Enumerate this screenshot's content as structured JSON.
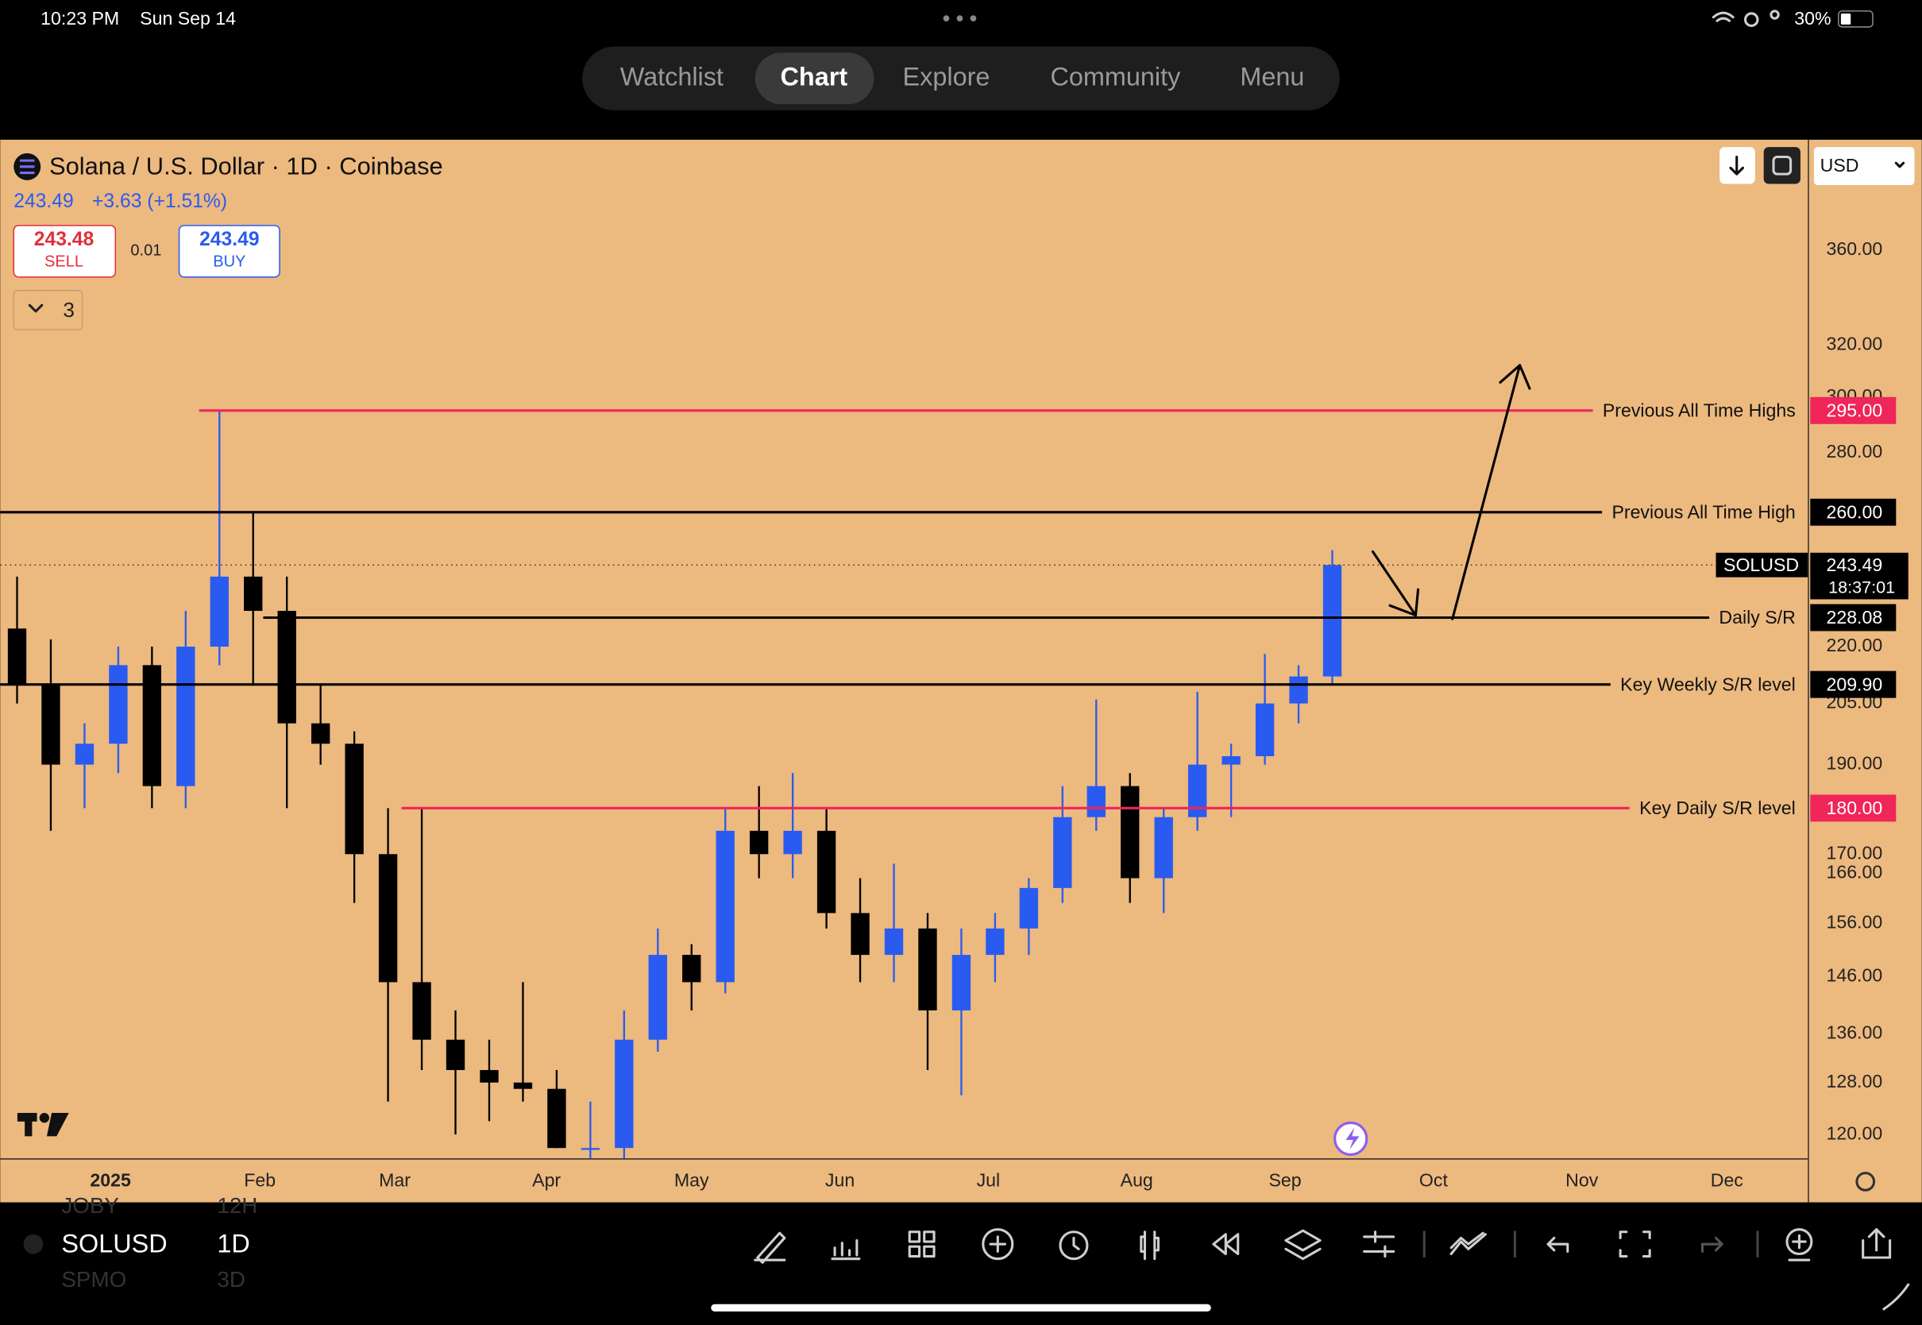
{
  "status_bar": {
    "time": "10:23 PM",
    "date": "Sun Sep 14",
    "battery": "30%"
  },
  "tabs": [
    "Watchlist",
    "Chart",
    "Explore",
    "Community",
    "Menu"
  ],
  "header": {
    "title": "Solana / U.S. Dollar · 1D · Coinbase",
    "price": "243.49",
    "change": "+3.63 (+1.51%)",
    "sell_price": "243.48",
    "sell": "SELL",
    "spread": "0.01",
    "buy_price": "243.49",
    "buy": "BUY",
    "indicators": "3",
    "currency": "USD"
  },
  "chart_data": {
    "type": "candlestick",
    "log_scale": true,
    "grid": false,
    "up_color": "#2a5bf0",
    "down_color": "#000000",
    "categories": [
      null,
      null,
      null,
      null,
      null,
      null,
      null,
      null,
      null,
      null,
      null,
      null,
      null,
      null,
      null,
      null,
      null,
      null,
      null,
      null,
      null,
      null,
      null,
      null,
      null,
      null,
      null,
      null,
      null,
      null,
      null,
      null,
      null,
      null,
      null,
      null,
      null,
      null,
      null,
      null
    ],
    "open": [
      225,
      210,
      190,
      195,
      215,
      185,
      220,
      240,
      230,
      200,
      195,
      170,
      145,
      135,
      130,
      128,
      127,
      118,
      118,
      135,
      150,
      145,
      175,
      170,
      175,
      158,
      150,
      155,
      140,
      150,
      155,
      163,
      178,
      185,
      165,
      178,
      190,
      192,
      205,
      212
    ],
    "high": [
      240,
      222,
      200,
      220,
      220,
      230,
      295,
      260,
      240,
      210,
      198,
      180,
      180,
      140,
      135,
      145,
      130,
      125,
      140,
      155,
      152,
      180,
      185,
      188,
      180,
      165,
      168,
      158,
      155,
      158,
      165,
      185,
      206,
      188,
      180,
      208,
      195,
      218,
      215,
      248
    ],
    "low": [
      205,
      175,
      180,
      188,
      180,
      180,
      215,
      210,
      180,
      190,
      160,
      125,
      130,
      120,
      122,
      125,
      118,
      110,
      116,
      133,
      140,
      143,
      165,
      165,
      155,
      145,
      145,
      130,
      126,
      145,
      150,
      160,
      175,
      160,
      158,
      175,
      178,
      190,
      200,
      210
    ],
    "close": [
      210,
      190,
      195,
      215,
      185,
      220,
      240,
      230,
      200,
      195,
      170,
      145,
      135,
      130,
      128,
      127,
      118,
      118,
      135,
      150,
      145,
      175,
      170,
      175,
      158,
      150,
      155,
      140,
      150,
      155,
      163,
      178,
      185,
      165,
      178,
      190,
      192,
      205,
      212,
      243.49
    ],
    "last_price": 243.49,
    "symbol": "SOLUSD",
    "countdown": "18:37:01",
    "ylim": [
      116.5,
      413
    ],
    "yticks": [
      {
        "value": 360,
        "label": "360.00"
      },
      {
        "value": 320,
        "label": "320.00"
      },
      {
        "value": 300,
        "label": "300.00"
      },
      {
        "value": 280,
        "label": "280.00"
      },
      {
        "value": 220,
        "label": "220.00"
      },
      {
        "value": 205,
        "label": "205.00"
      },
      {
        "value": 190,
        "label": "190.00"
      },
      {
        "value": 170,
        "label": "170.00"
      },
      {
        "value": 166,
        "label": "166.00"
      },
      {
        "value": 156,
        "label": "156.00"
      },
      {
        "value": 146,
        "label": "146.00"
      },
      {
        "value": 136,
        "label": "136.00"
      },
      {
        "value": 128,
        "label": "128.00"
      },
      {
        "value": 120,
        "label": "120.00"
      }
    ],
    "xlim": [
      0,
      53.6
    ],
    "xticks": [
      {
        "value": 3.27,
        "label": "2025"
      },
      {
        "value": 7.7,
        "label": "Feb"
      },
      {
        "value": 11.7,
        "label": "Mar"
      },
      {
        "value": 16.2,
        "label": "Apr"
      },
      {
        "value": 20.5,
        "label": "May"
      },
      {
        "value": 24.9,
        "label": "Jun"
      },
      {
        "value": 29.3,
        "label": "Jul"
      },
      {
        "value": 33.7,
        "label": "Aug"
      },
      {
        "value": 38.1,
        "label": "Sep"
      },
      {
        "value": 42.5,
        "label": "Oct"
      },
      {
        "value": 46.9,
        "label": "Nov"
      },
      {
        "value": 51.2,
        "label": "Dec"
      }
    ],
    "levels": [
      {
        "name": "Previous All Time Highs",
        "value": 295,
        "value_label": "295.00",
        "color": "#f0255a",
        "x_start": 5.9
      },
      {
        "name": "Previous All Time High",
        "value": 260,
        "value_label": "260.00",
        "color": "#000000",
        "x_start": 0
      },
      {
        "name": "Daily S/R",
        "value": 228.08,
        "value_label": "228.08",
        "color": "#000000",
        "x_start": 7.8
      },
      {
        "name": "Key Weekly S/R level",
        "value": 209.9,
        "value_label": "209.90",
        "color": "#000000",
        "x_start": 0
      },
      {
        "name": "Key Daily S/R level",
        "value": 180,
        "value_label": "180.00",
        "color": "#f0255a",
        "x_start": 11.9
      }
    ]
  },
  "bottom_bar": {
    "symbol": "SOLUSD",
    "interval": "1D",
    "prev_symbol": "JOBY",
    "prev_interval": "12H",
    "next_symbol": "SPMO",
    "next_interval": "3D"
  }
}
